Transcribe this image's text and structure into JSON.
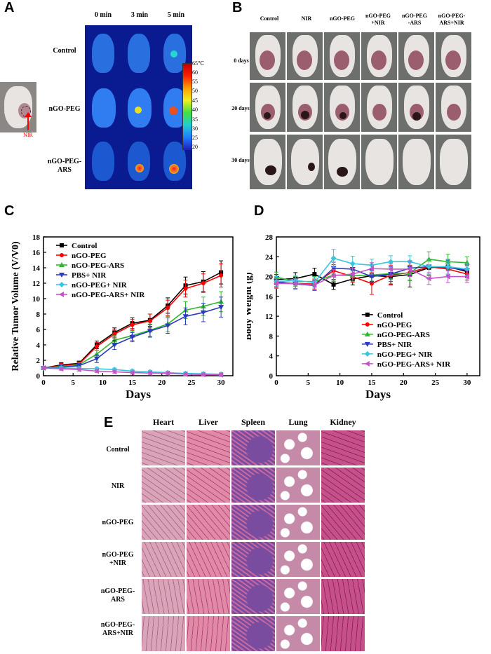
{
  "panels": {
    "A": "A",
    "B": "B",
    "C": "C",
    "D": "D",
    "E": "E"
  },
  "panelA": {
    "time_labels": [
      "0 min",
      "3 min",
      "5 min"
    ],
    "row_labels": [
      "Control",
      "nGO-PEG",
      "nGO-PEG-\nARS"
    ],
    "colorbar_ticks": [
      "65℃",
      "60",
      "55",
      "50",
      "45",
      "40",
      "35",
      "30",
      "25",
      "20"
    ],
    "nir_label": "NIR"
  },
  "panelB": {
    "col_labels": [
      "Control",
      "NIR",
      "nGO-PEG",
      "nGO-PEG\n+NIR",
      "nGO-PEG\n-ARS",
      "nGO-PEG-\nARS+NIR"
    ],
    "row_labels": [
      "0 days",
      "20 days",
      "30 days"
    ]
  },
  "panelE": {
    "col_labels": [
      "Heart",
      "Liver",
      "Spleen",
      "Lung",
      "Kidney"
    ],
    "row_labels": [
      "Control",
      "NIR",
      "nGO-PEG",
      "nGO-PEG\n+NIR",
      "nGO-PEG-\nARS",
      "nGO-PEG-\nARS+NIR"
    ]
  },
  "colors": {
    "control": "#000000",
    "ngo_peg": "#ff0000",
    "ngo_peg_ars": "#2eb82e",
    "pbs_nir": "#2b3bbf",
    "ngo_peg_nir": "#36c6e0",
    "ngo_peg_ars_nir": "#c455c4"
  },
  "chart_data": [
    {
      "type": "line",
      "id": "C",
      "xlabel": "Days",
      "ylabel": "Relative Tumor Volume (V/V0)",
      "xlim": [
        0,
        32
      ],
      "ylim": [
        0,
        18
      ],
      "xticks": [
        0,
        5,
        10,
        15,
        20,
        25,
        30
      ],
      "yticks": [
        0,
        2,
        4,
        6,
        8,
        10,
        12,
        14,
        16,
        18
      ],
      "legend_position": "top-left",
      "x": [
        0,
        3,
        6,
        9,
        12,
        15,
        18,
        21,
        24,
        27,
        30
      ],
      "series": [
        {
          "name": "Control",
          "color": "#000000",
          "marker": "square",
          "values": [
            1.0,
            1.4,
            1.6,
            4.0,
            5.6,
            6.8,
            7.2,
            9.1,
            11.7,
            12.2,
            13.4
          ],
          "errors": [
            0.2,
            0.3,
            0.3,
            0.5,
            0.6,
            0.7,
            0.8,
            1.0,
            1.1,
            1.3,
            1.5
          ]
        },
        {
          "name": "nGO-PEG",
          "color": "#ff0000",
          "marker": "circle",
          "values": [
            1.0,
            1.3,
            1.5,
            3.8,
            5.4,
            6.6,
            7.1,
            8.8,
            11.3,
            12.0,
            13.0
          ],
          "errors": [
            0.2,
            0.3,
            0.3,
            0.5,
            0.6,
            0.7,
            0.9,
            1.0,
            1.1,
            1.2,
            1.5
          ]
        },
        {
          "name": "nGO-PEG-ARS",
          "color": "#2eb82e",
          "marker": "triangle-up",
          "values": [
            1.0,
            1.2,
            1.4,
            2.8,
            4.6,
            5.2,
            5.9,
            6.7,
            8.5,
            9.0,
            9.6
          ],
          "errors": [
            0.2,
            0.3,
            0.3,
            0.5,
            0.6,
            0.6,
            0.8,
            1.0,
            1.1,
            1.2,
            1.3
          ]
        },
        {
          "name": "PBS+ NIR",
          "color": "#2b3bbf",
          "marker": "triangle-down",
          "values": [
            1.0,
            1.1,
            1.3,
            2.2,
            4.0,
            5.0,
            5.8,
            6.5,
            7.7,
            8.2,
            8.9
          ],
          "errors": [
            0.2,
            0.3,
            0.3,
            0.5,
            0.6,
            0.6,
            0.8,
            1.0,
            1.1,
            1.2,
            1.3
          ]
        },
        {
          "name": "nGO-PEG+ NIR",
          "color": "#36c6e0",
          "marker": "diamond",
          "values": [
            1.0,
            1.0,
            0.95,
            0.9,
            0.8,
            0.6,
            0.5,
            0.4,
            0.3,
            0.25,
            0.2
          ],
          "errors": [
            0.2,
            0.2,
            0.2,
            0.2,
            0.2,
            0.2,
            0.2,
            0.2,
            0.2,
            0.2,
            0.2
          ]
        },
        {
          "name": "nGO-PEG-ARS+ NIR",
          "color": "#c455c4",
          "marker": "triangle-left",
          "values": [
            1.0,
            0.9,
            0.8,
            0.6,
            0.5,
            0.4,
            0.35,
            0.3,
            0.2,
            0.15,
            0.1
          ],
          "errors": [
            0.2,
            0.2,
            0.2,
            0.2,
            0.2,
            0.2,
            0.2,
            0.2,
            0.2,
            0.2,
            0.2
          ]
        }
      ]
    },
    {
      "type": "line",
      "id": "D",
      "xlabel": "Days",
      "ylabel": "Body Weight (g)",
      "xlim": [
        0,
        32
      ],
      "ylim": [
        0,
        28
      ],
      "xticks": [
        0,
        5,
        10,
        15,
        20,
        25,
        30
      ],
      "yticks": [
        0,
        4,
        8,
        12,
        16,
        20,
        24,
        28
      ],
      "legend_position": "bottom-right",
      "x": [
        0,
        3,
        6,
        9,
        12,
        15,
        18,
        21,
        24,
        27,
        30
      ],
      "series": [
        {
          "name": "Control",
          "color": "#000000",
          "marker": "square",
          "values": [
            19.4,
            19.6,
            20.5,
            18.4,
            19.5,
            20.2,
            20.0,
            20.4,
            21.8,
            22.0,
            21.0
          ],
          "errors": [
            1.0,
            1.2,
            1.2,
            1.0,
            1.2,
            1.2,
            1.5,
            2.5,
            1.5,
            1.5,
            1.2
          ]
        },
        {
          "name": "nGO-PEG",
          "color": "#ff0000",
          "marker": "circle",
          "values": [
            18.8,
            18.6,
            18.5,
            21.2,
            20.0,
            18.6,
            20.3,
            20.8,
            22.0,
            21.5,
            20.5
          ],
          "errors": [
            1.0,
            1.0,
            1.0,
            1.2,
            1.2,
            2.2,
            2.0,
            1.5,
            1.5,
            1.5,
            1.2
          ]
        },
        {
          "name": "nGO-PEG-ARS",
          "color": "#2eb82e",
          "marker": "triangle-up",
          "values": [
            19.9,
            19.0,
            19.0,
            20.3,
            20.2,
            20.3,
            20.6,
            20.7,
            23.5,
            23.0,
            22.8
          ],
          "errors": [
            1.0,
            1.0,
            1.0,
            1.2,
            1.2,
            1.2,
            1.2,
            1.5,
            1.5,
            1.5,
            1.2
          ]
        },
        {
          "name": "PBS+ NIR",
          "color": "#2b3bbf",
          "marker": "triangle-down",
          "values": [
            19.0,
            18.5,
            18.2,
            21.7,
            21.5,
            20.0,
            20.5,
            21.7,
            22.0,
            21.8,
            21.3
          ],
          "errors": [
            1.0,
            1.0,
            1.0,
            1.2,
            1.2,
            1.2,
            1.5,
            1.5,
            1.5,
            1.5,
            1.2
          ]
        },
        {
          "name": "nGO-PEG+ NIR",
          "color": "#36c6e0",
          "marker": "diamond",
          "values": [
            19.0,
            19.2,
            18.8,
            23.7,
            22.6,
            22.3,
            23.0,
            23.0,
            22.0,
            22.0,
            21.5
          ],
          "errors": [
            1.0,
            1.0,
            1.0,
            1.8,
            1.5,
            1.2,
            1.2,
            1.2,
            1.5,
            1.5,
            1.2
          ]
        },
        {
          "name": "nGO-PEG-ARS+ NIR",
          "color": "#c455c4",
          "marker": "triangle-left",
          "values": [
            18.6,
            18.6,
            18.3,
            20.2,
            20.5,
            21.6,
            21.5,
            21.5,
            19.6,
            20.0,
            20.0
          ],
          "errors": [
            1.0,
            1.0,
            1.0,
            1.2,
            1.2,
            1.2,
            1.2,
            1.5,
            1.2,
            1.2,
            1.2
          ]
        }
      ]
    }
  ]
}
